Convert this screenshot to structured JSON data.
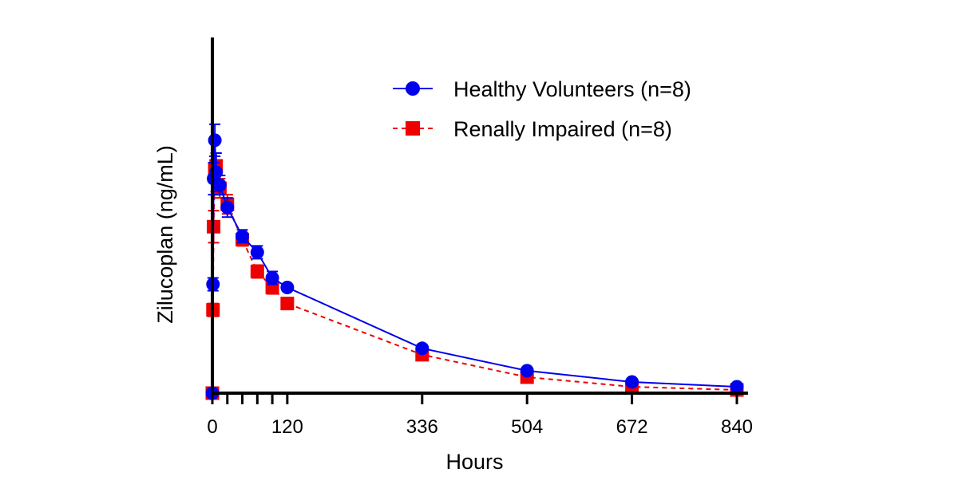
{
  "chart_data": {
    "type": "line",
    "title": "",
    "xlabel": "Hours",
    "ylabel": "Zilucoplan (ng/mL)",
    "xlim": [
      0,
      840
    ],
    "ylim": [
      0,
      1
    ],
    "x_ticks": [
      0,
      120,
      336,
      504,
      672,
      840
    ],
    "x_minor_ticks": [
      24,
      48,
      72,
      96
    ],
    "y_ticks": [],
    "grid": false,
    "legend_position": "top-right",
    "series": [
      {
        "name": "Healthy Volunteers (n=8)",
        "color": "#0000ee",
        "line_style": "solid",
        "marker": "circle",
        "x": [
          0,
          1,
          2,
          4,
          6,
          12,
          24,
          48,
          72,
          96,
          120,
          336,
          504,
          672,
          840
        ],
        "y": [
          0.0,
          0.34,
          0.67,
          0.79,
          0.69,
          0.65,
          0.58,
          0.49,
          0.44,
          0.36,
          0.33,
          0.14,
          0.07,
          0.035,
          0.02
        ],
        "error": [
          0.0,
          0.02,
          0.05,
          0.05,
          0.06,
          0.03,
          0.03,
          0.02,
          0.02,
          0.02,
          0.01,
          0.01,
          0.01,
          0.005,
          0.005
        ]
      },
      {
        "name": "Renally Impaired (n=8)",
        "color": "#ee0000",
        "line_style": "dashed",
        "marker": "square",
        "x": [
          0,
          1,
          2,
          4,
          6,
          12,
          24,
          48,
          72,
          96,
          120,
          336,
          504,
          672,
          840
        ],
        "y": [
          0.0,
          0.26,
          0.52,
          0.7,
          0.71,
          0.64,
          0.59,
          0.48,
          0.38,
          0.33,
          0.28,
          0.12,
          0.05,
          0.02,
          0.01
        ],
        "error": [
          0.0,
          0.02,
          0.05,
          0.04,
          0.04,
          0.03,
          0.03,
          0.02,
          0.02,
          0.02,
          0.01,
          0.01,
          0.005,
          0.005,
          0.005
        ]
      }
    ]
  }
}
